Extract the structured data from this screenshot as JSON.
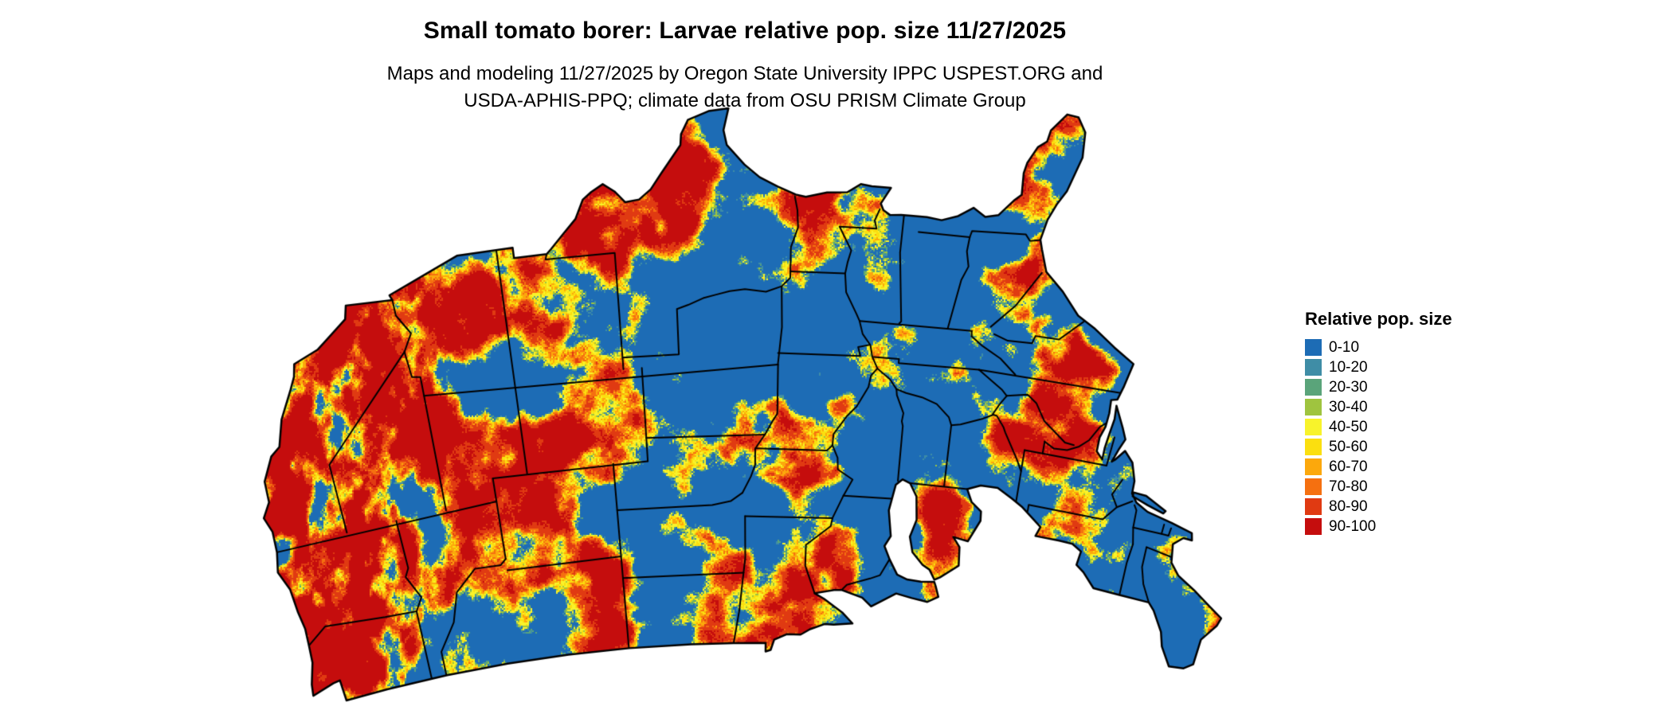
{
  "header": {
    "title": "Small tomato borer: Larvae relative pop. size 11/27/2025",
    "subtitle_line1": "Maps and modeling 11/27/2025 by Oregon State University IPPC USPEST.ORG and",
    "subtitle_line2": "USDA-APHIS-PPQ; climate data from OSU PRISM Climate Group"
  },
  "legend": {
    "title": "Relative pop. size",
    "items": [
      {
        "label": "0-10",
        "color": "#1d6cb5"
      },
      {
        "label": "10-20",
        "color": "#3f8da6"
      },
      {
        "label": "20-30",
        "color": "#5aa47a"
      },
      {
        "label": "30-40",
        "color": "#9fc43f"
      },
      {
        "label": "40-50",
        "color": "#f8f32b"
      },
      {
        "label": "50-60",
        "color": "#fbdf0f"
      },
      {
        "label": "60-70",
        "color": "#fca80c"
      },
      {
        "label": "70-80",
        "color": "#f57010"
      },
      {
        "label": "80-90",
        "color": "#e03a12"
      },
      {
        "label": "90-100",
        "color": "#c50d0d"
      }
    ]
  },
  "map": {
    "region": "Contiguous United States",
    "border_color": "#000000",
    "background_color": "#ffffff"
  }
}
